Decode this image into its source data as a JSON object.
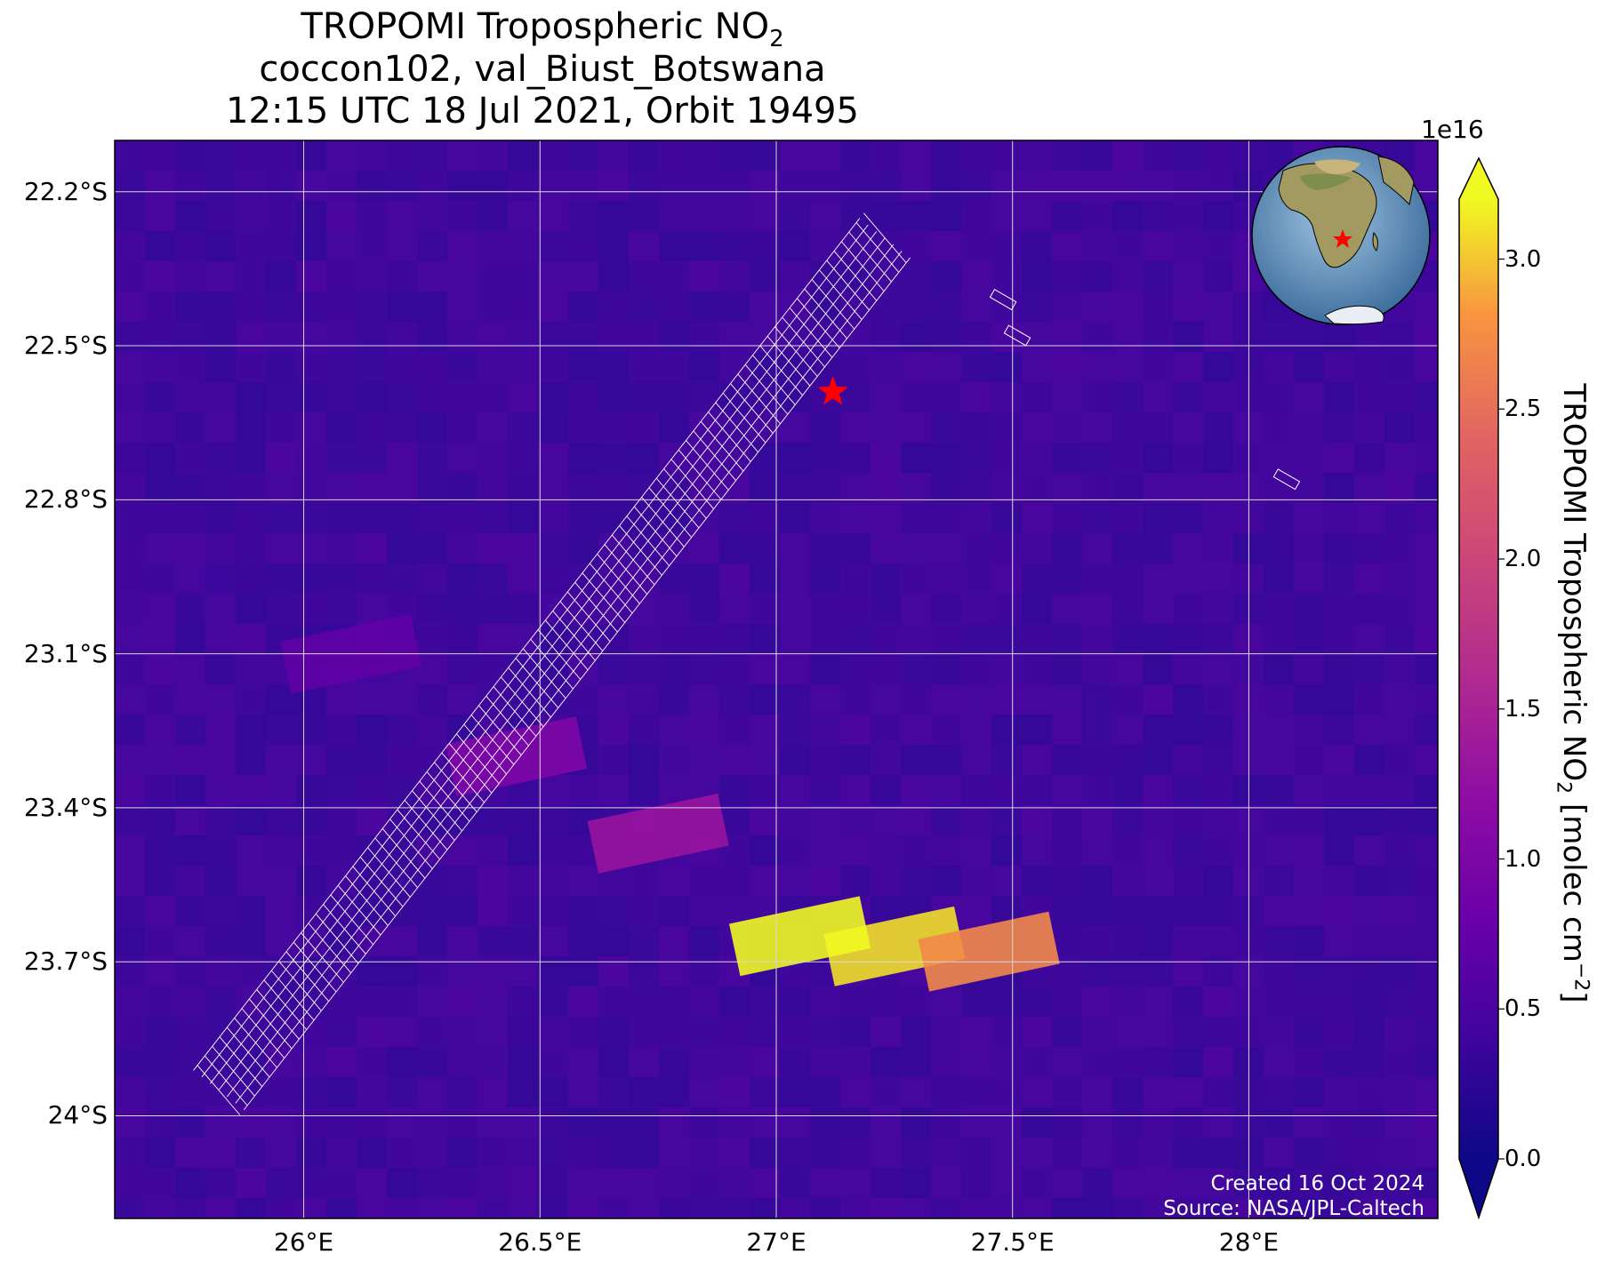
{
  "figure": {
    "title_line1": "TROPOMI Tropospheric NO",
    "title_line1_sub": "2",
    "title_line2": "coccon102, val_Biust_Botswana",
    "title_line3": "12:15 UTC 18 Jul 2021, Orbit 19495"
  },
  "map": {
    "lon_range": [
      25.6,
      28.4
    ],
    "lat_range": [
      -24.2,
      -22.1
    ],
    "lat_ticks": [
      {
        "value": -22.2,
        "label": "22.2°S"
      },
      {
        "value": -22.5,
        "label": "22.5°S"
      },
      {
        "value": -22.8,
        "label": "22.8°S"
      },
      {
        "value": -23.1,
        "label": "23.1°S"
      },
      {
        "value": -23.4,
        "label": "23.4°S"
      },
      {
        "value": -23.7,
        "label": "23.7°S"
      },
      {
        "value": -24.0,
        "label": "24°S"
      }
    ],
    "lon_ticks": [
      {
        "value": 26.0,
        "label": "26°E"
      },
      {
        "value": 26.5,
        "label": "26.5°E"
      },
      {
        "value": 27.0,
        "label": "27°E"
      },
      {
        "value": 27.5,
        "label": "27.5°E"
      },
      {
        "value": 28.0,
        "label": "28°E"
      }
    ],
    "gridlines": true,
    "background_color": "#3d0c9b",
    "site_marker": {
      "lon": 27.12,
      "lat": -22.59,
      "symbol": "star",
      "color": "#ff0000"
    },
    "inset_globe": {
      "position": "top-right",
      "marker_color": "#ff0000"
    }
  },
  "chart_data": {
    "type": "heatmap",
    "variable": "TROPOMI Tropospheric NO2",
    "units": "molec cm^-2",
    "scale_exponent": "1e16",
    "vmin": 0.0,
    "vmax": 3.2,
    "colormap": "plasma",
    "plumes": [
      {
        "lon": 27.25,
        "lat": -23.67,
        "value": 3.1
      },
      {
        "lon": 27.05,
        "lat": -23.65,
        "value": 3.2
      },
      {
        "lon": 27.45,
        "lat": -23.68,
        "value": 2.7
      },
      {
        "lon": 26.75,
        "lat": -23.45,
        "value": 1.3
      },
      {
        "lon": 26.45,
        "lat": -23.3,
        "value": 1.0
      },
      {
        "lon": 26.1,
        "lat": -23.1,
        "value": 0.7
      }
    ]
  },
  "colorbar": {
    "label_main": "TROPOMI Tropospheric NO",
    "label_sub": "2",
    "label_units": " [molec cm",
    "label_sup": "−2",
    "label_close": "]",
    "exponent_label": "1e16",
    "ticks": [
      {
        "value": 0.0,
        "label": "0.0"
      },
      {
        "value": 0.5,
        "label": "0.5"
      },
      {
        "value": 1.0,
        "label": "1.0"
      },
      {
        "value": 1.5,
        "label": "1.5"
      },
      {
        "value": 2.0,
        "label": "2.0"
      },
      {
        "value": 2.5,
        "label": "2.5"
      },
      {
        "value": 3.0,
        "label": "3.0"
      }
    ]
  },
  "credits": {
    "created": "Created 16 Oct 2024",
    "source": "Source: NASA/JPL-Caltech"
  }
}
